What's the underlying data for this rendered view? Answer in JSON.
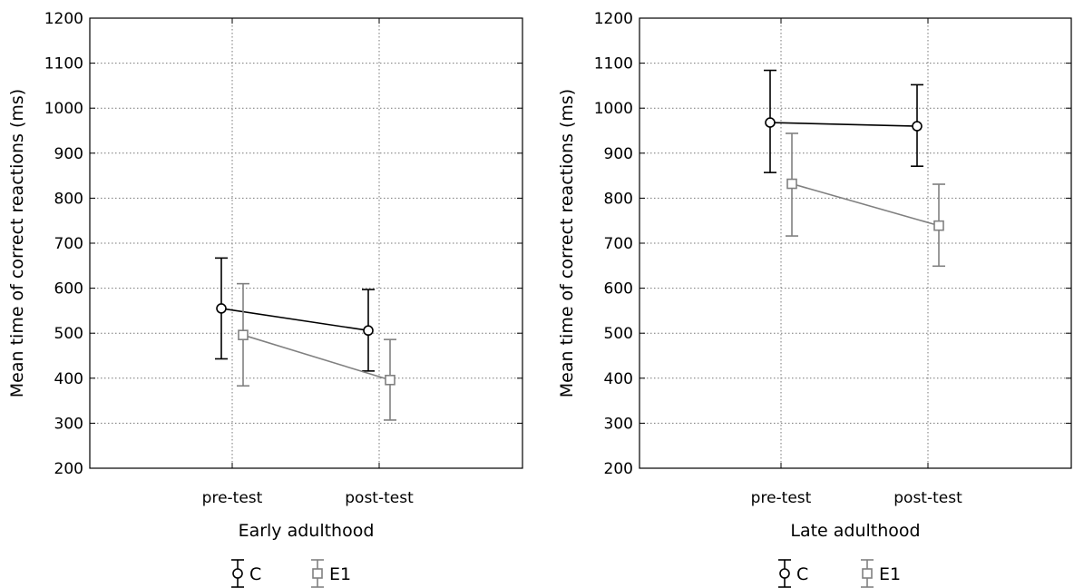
{
  "chart_data": [
    {
      "type": "line",
      "title": "",
      "xlabel": "Early adulthood",
      "ylabel": "Mean time of correct reactions (ms)",
      "ylim": [
        200,
        1200
      ],
      "yticks": [
        200,
        300,
        400,
        500,
        600,
        700,
        800,
        900,
        1000,
        1100,
        1200
      ],
      "categories": [
        "pre-test",
        "post-test"
      ],
      "grid": true,
      "legend": "bottom",
      "series": [
        {
          "name": "C",
          "color": "#000000",
          "marker": "circle",
          "values": [
            555,
            506
          ],
          "lower": [
            443,
            416
          ],
          "upper": [
            667,
            597
          ]
        },
        {
          "name": "E1",
          "color": "#808080",
          "marker": "square",
          "values": [
            496,
            396
          ],
          "lower": [
            383,
            307
          ],
          "upper": [
            610,
            486
          ]
        }
      ]
    },
    {
      "type": "line",
      "title": "",
      "xlabel": "Late adulthood",
      "ylabel": "Mean time of correct reactions (ms)",
      "ylim": [
        200,
        1200
      ],
      "yticks": [
        200,
        300,
        400,
        500,
        600,
        700,
        800,
        900,
        1000,
        1100,
        1200
      ],
      "categories": [
        "pre-test",
        "post-test"
      ],
      "grid": true,
      "legend": "bottom",
      "series": [
        {
          "name": "C",
          "color": "#000000",
          "marker": "circle",
          "values": [
            968,
            960
          ],
          "lower": [
            857,
            871
          ],
          "upper": [
            1084,
            1052
          ]
        },
        {
          "name": "E1",
          "color": "#808080",
          "marker": "square",
          "values": [
            832,
            739
          ],
          "lower": [
            716,
            649
          ],
          "upper": [
            944,
            831
          ]
        }
      ]
    }
  ]
}
